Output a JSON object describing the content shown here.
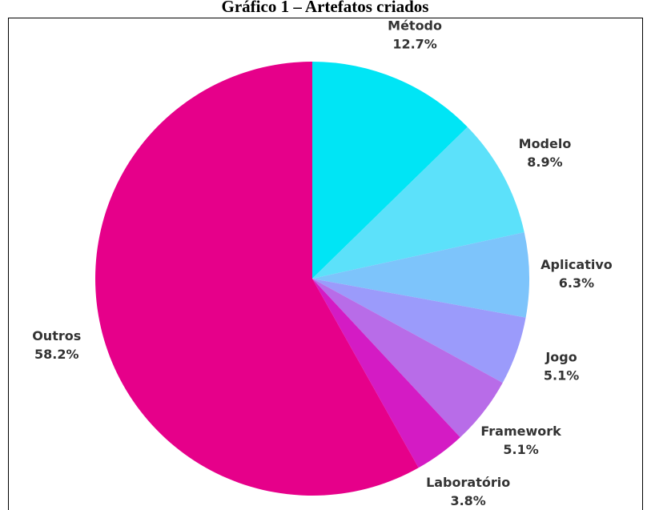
{
  "chart_data": {
    "type": "pie",
    "title": "Gráfico 1 – Artefatos criados",
    "categories": [
      "Método",
      "Modelo",
      "Aplicativo",
      "Jogo",
      "Framework",
      "Laboratório",
      "Outros"
    ],
    "values": [
      12.7,
      8.9,
      6.3,
      5.1,
      5.1,
      3.8,
      58.2
    ],
    "value_labels": [
      "12.7%",
      "8.9%",
      "6.3%",
      "5.1%",
      "5.1%",
      "3.8%",
      "58.2%"
    ],
    "colors": [
      "#00e5f5",
      "#5ce1fa",
      "#7dc4fb",
      "#9b9bfb",
      "#b86ce8",
      "#d41bc4",
      "#e6008a"
    ]
  }
}
